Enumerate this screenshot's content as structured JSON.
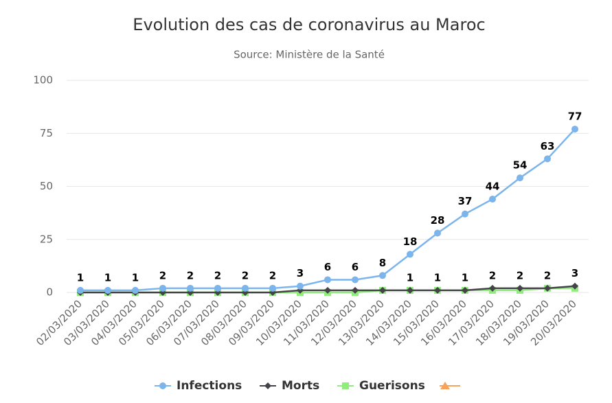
{
  "chart_data": {
    "type": "line",
    "title": "Evolution des cas de coronavirus au Maroc",
    "subtitle": "Source: Ministère de la Santé",
    "categories": [
      "02/03/2020",
      "03/03/2020",
      "04/03/2020",
      "05/03/2020",
      "06/03/2020",
      "07/03/2020",
      "08/03/2020",
      "09/03/2020",
      "10/03/2020",
      "11/03/2020",
      "12/03/2020",
      "13/03/2020",
      "14/03/2020",
      "15/03/2020",
      "16/03/2020",
      "17/03/2020",
      "18/03/2020",
      "19/03/2020",
      "20/03/2020"
    ],
    "series": [
      {
        "name": "Infections",
        "color": "#7cb5ec",
        "marker": "circle",
        "values": [
          1,
          1,
          1,
          2,
          2,
          2,
          2,
          2,
          3,
          6,
          6,
          8,
          18,
          28,
          37,
          44,
          54,
          63,
          77
        ]
      },
      {
        "name": "Morts",
        "color": "#434348",
        "marker": "diamond",
        "values": [
          0,
          0,
          0,
          0,
          0,
          0,
          0,
          0,
          1,
          1,
          1,
          1,
          1,
          1,
          1,
          2,
          2,
          2,
          3
        ]
      },
      {
        "name": "Guerisons",
        "color": "#90ed7d",
        "marker": "square",
        "values": [
          0,
          0,
          0,
          0,
          0,
          0,
          0,
          0,
          0,
          0,
          0,
          1,
          1,
          1,
          1,
          1,
          1,
          2,
          2
        ]
      }
    ],
    "ylim": [
      0,
      100
    ],
    "yticks": [
      0,
      25,
      50,
      75,
      100
    ],
    "grid": true
  }
}
